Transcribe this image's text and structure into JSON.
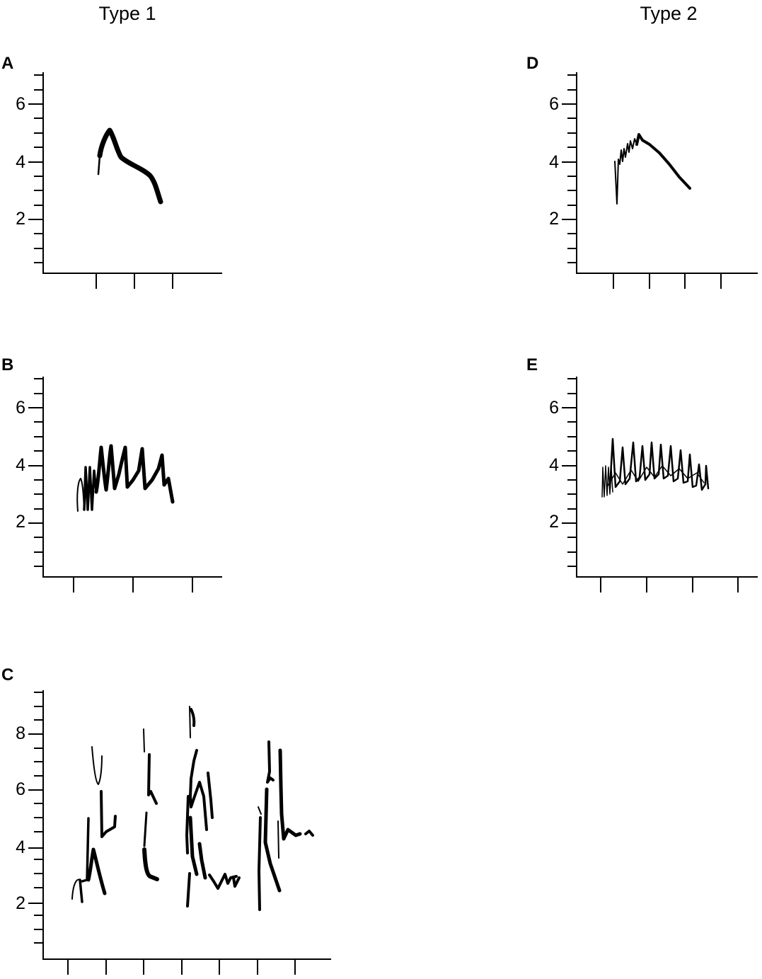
{
  "columns": {
    "left": "Type 1",
    "right": "Type 2"
  },
  "panels": [
    {
      "letter": "A",
      "y_tick_labels": [
        "6",
        "4",
        "2"
      ]
    },
    {
      "letter": "B",
      "y_tick_labels": [
        "6",
        "4",
        "2"
      ]
    },
    {
      "letter": "C",
      "y_tick_labels": [
        "8",
        "6",
        "4",
        "2"
      ]
    },
    {
      "letter": "D",
      "y_tick_labels": [
        "6",
        "4",
        "2"
      ]
    },
    {
      "letter": "E",
      "y_tick_labels": [
        "6",
        "4",
        "2"
      ]
    }
  ]
}
